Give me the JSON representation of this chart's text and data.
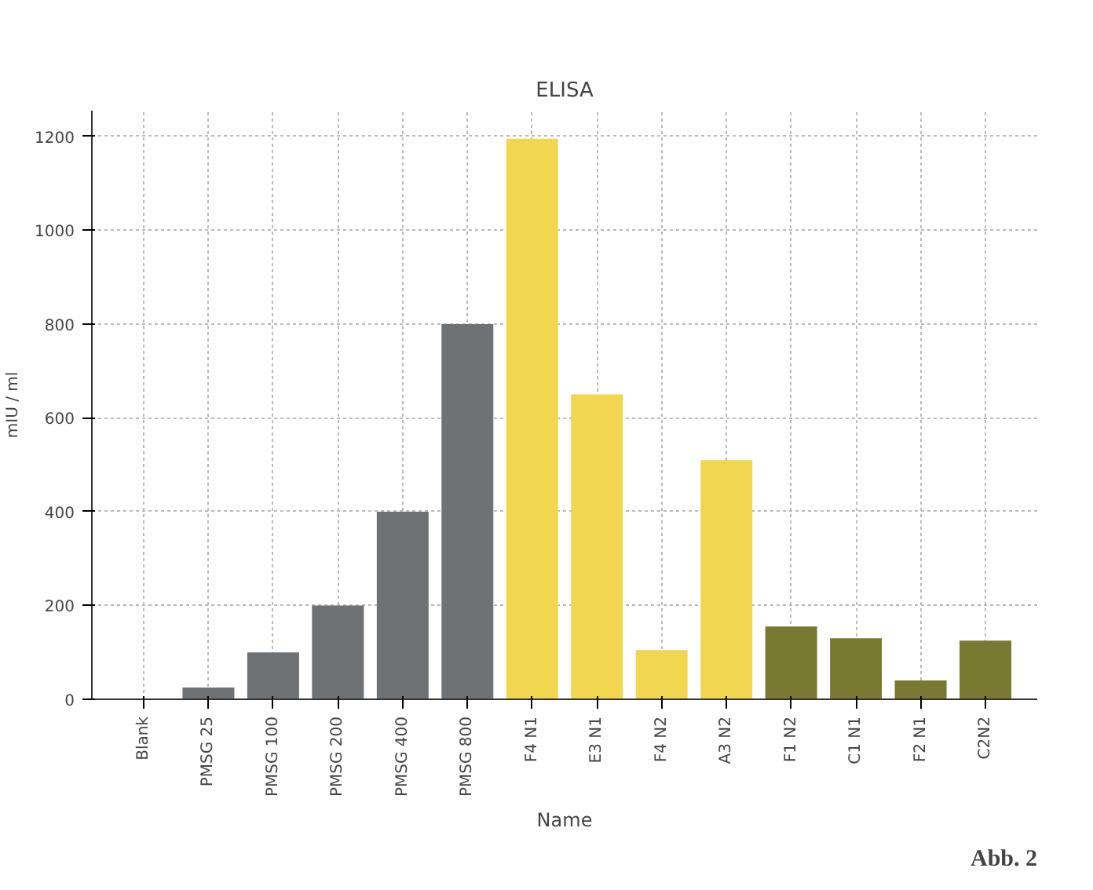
{
  "chart_data": {
    "type": "bar",
    "title": "ELISA",
    "xlabel": "Name",
    "ylabel": "mIU / ml",
    "categories": [
      "Blank",
      "PMSG 25",
      "PMSG 100",
      "PMSG 200",
      "PMSG 400",
      "PMSG 800",
      "F4 N1",
      "E3 N1",
      "F4 N2",
      "A3 N2",
      "F1 N2",
      "C1 N1",
      "F2 N1",
      "C2N2"
    ],
    "values": [
      0,
      25,
      100,
      200,
      400,
      800,
      1195,
      650,
      105,
      510,
      155,
      130,
      40,
      125
    ],
    "colors": [
      "#6e7275",
      "#6e7275",
      "#6e7275",
      "#6e7275",
      "#6e7275",
      "#6e7275",
      "#f2d64f",
      "#f2d64f",
      "#f2d64f",
      "#f2d64f",
      "#777a30",
      "#777a30",
      "#777a30",
      "#777a30"
    ],
    "ylim": [
      0,
      1255
    ],
    "yticks": [
      0,
      200,
      400,
      600,
      800,
      1000,
      1200
    ],
    "grid": true,
    "annotations": [
      "Abb. 2"
    ]
  }
}
